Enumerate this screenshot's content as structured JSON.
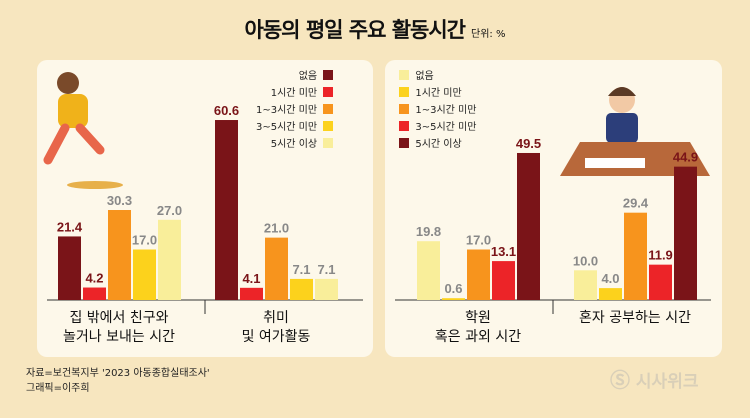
{
  "title": "아동의 평일 주요 활동시간",
  "unit": "단위: %",
  "source": "자료=보건복지부 '2023 아동종합실태조사'",
  "credit": "그래픽=이주희",
  "logo": "시사위크",
  "chart_data": [
    {
      "type": "bar",
      "categories_order": "left",
      "legend": [
        {
          "label": "없음",
          "color": "#7a1418"
        },
        {
          "label": "1시간 미만",
          "color": "#ec2428"
        },
        {
          "label": "1~3시간 미만",
          "color": "#f7941d"
        },
        {
          "label": "3~5시간 미만",
          "color": "#fcd21c"
        },
        {
          "label": "5시간 이상",
          "color": "#f9ee9a"
        }
      ],
      "groups": [
        {
          "label": [
            "집 밖에서 친구와",
            "놀거나 보내는 시간"
          ],
          "values": [
            21.4,
            4.2,
            30.3,
            17.0,
            27.0
          ]
        },
        {
          "label": [
            "취미",
            "및 여가활동"
          ],
          "values": [
            60.6,
            4.1,
            21.0,
            7.1,
            7.1
          ]
        }
      ]
    },
    {
      "type": "bar",
      "legend": [
        {
          "label": "없음",
          "color": "#f9ee9a"
        },
        {
          "label": "1시간 미만",
          "color": "#fcd21c"
        },
        {
          "label": "1~3시간 미만",
          "color": "#f7941d"
        },
        {
          "label": "3~5시간 미만",
          "color": "#ec2428"
        },
        {
          "label": "5시간 이상",
          "color": "#7a1418"
        }
      ],
      "groups": [
        {
          "label": [
            "학원",
            "혹은 과외 시간"
          ],
          "values": [
            19.8,
            0.6,
            17.0,
            13.1,
            49.5
          ]
        },
        {
          "label": [
            "혼자 공부하는 시간"
          ],
          "values": [
            10.0,
            4.0,
            29.4,
            11.9,
            44.9
          ]
        }
      ]
    }
  ],
  "value_colors": {
    "dark": "#7a1418",
    "mid": "#888888"
  }
}
